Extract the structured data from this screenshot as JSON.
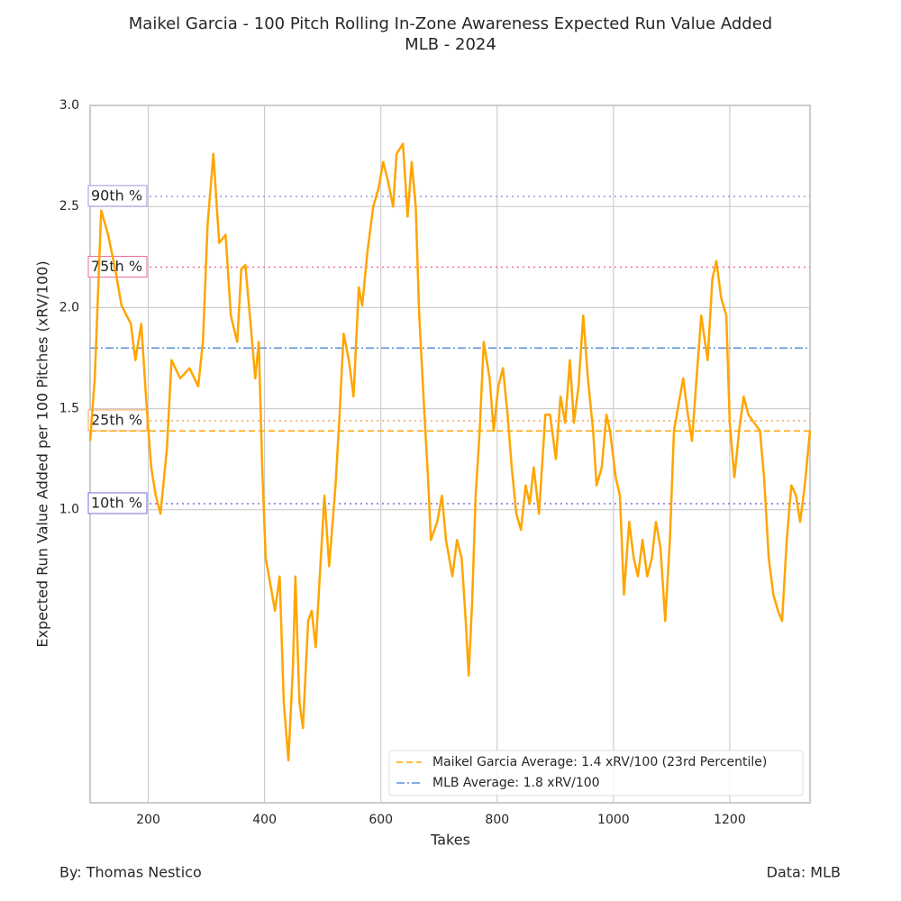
{
  "chart_data": {
    "type": "line",
    "title": "Maikel Garcia - 100 Pitch Rolling In-Zone Awareness Expected Run Value Added",
    "subtitle": "MLB - 2024",
    "xlabel": "Takes",
    "ylabel": "Expected Run Value Added per 100 Pitches (xRV/100)",
    "x": [
      100,
      108,
      119,
      131,
      143,
      154,
      170,
      178,
      188,
      196,
      205,
      213,
      221,
      232,
      240,
      255,
      271,
      286,
      294,
      302,
      312,
      322,
      333,
      342,
      353,
      360,
      367,
      376,
      384,
      390,
      396,
      402,
      410,
      418,
      426,
      433,
      441,
      449,
      453,
      460,
      466,
      475,
      481,
      488,
      495,
      503,
      511,
      522,
      529,
      536,
      545,
      553,
      562,
      568,
      577,
      587,
      596,
      604,
      612,
      621,
      627,
      638,
      646,
      653,
      660,
      666,
      674,
      681,
      686,
      697,
      705,
      712,
      723,
      731,
      739,
      746,
      751,
      757,
      763,
      770,
      777,
      787,
      794,
      802,
      810,
      818,
      825,
      833,
      841,
      849,
      856,
      863,
      872,
      883,
      891,
      901,
      909,
      917,
      925,
      932,
      940,
      948,
      956,
      965,
      971,
      980,
      988,
      994,
      1004,
      1011,
      1018,
      1027,
      1035,
      1042,
      1050,
      1058,
      1066,
      1073,
      1081,
      1089,
      1097,
      1104,
      1112,
      1120,
      1128,
      1135,
      1143,
      1151,
      1162,
      1170,
      1177,
      1185,
      1194,
      1200,
      1208,
      1216,
      1224,
      1232,
      1242,
      1252,
      1259,
      1267,
      1275,
      1283,
      1290,
      1298,
      1306,
      1314,
      1321,
      1329,
      1338
    ],
    "series": [
      {
        "color": "#ffa500",
        "values": [
          1.34,
          1.65,
          2.48,
          2.36,
          2.19,
          2.01,
          1.92,
          1.74,
          1.92,
          1.56,
          1.21,
          1.07,
          0.98,
          1.3,
          1.74,
          1.65,
          1.7,
          1.61,
          1.83,
          2.41,
          2.76,
          2.32,
          2.36,
          1.96,
          1.83,
          2.19,
          2.21,
          1.92,
          1.65,
          1.83,
          1.21,
          0.76,
          0.63,
          0.5,
          0.67,
          0.05,
          -0.24,
          0.23,
          0.67,
          0.05,
          -0.08,
          0.45,
          0.5,
          0.32,
          0.67,
          1.07,
          0.72,
          1.12,
          1.47,
          1.87,
          1.74,
          1.56,
          2.1,
          2.01,
          2.28,
          2.5,
          2.59,
          2.72,
          2.63,
          2.5,
          2.76,
          2.81,
          2.45,
          2.72,
          2.5,
          1.96,
          1.52,
          1.16,
          0.85,
          0.94,
          1.07,
          0.85,
          0.67,
          0.85,
          0.76,
          0.45,
          0.18,
          0.54,
          1.07,
          1.39,
          1.83,
          1.65,
          1.39,
          1.61,
          1.7,
          1.47,
          1.21,
          0.98,
          0.9,
          1.12,
          1.03,
          1.21,
          0.98,
          1.47,
          1.47,
          1.25,
          1.56,
          1.43,
          1.74,
          1.43,
          1.61,
          1.96,
          1.65,
          1.39,
          1.12,
          1.21,
          1.47,
          1.39,
          1.16,
          1.07,
          0.58,
          0.94,
          0.76,
          0.67,
          0.85,
          0.67,
          0.76,
          0.94,
          0.81,
          0.45,
          0.85,
          1.39,
          1.52,
          1.65,
          1.47,
          1.34,
          1.65,
          1.96,
          1.74,
          2.14,
          2.23,
          2.05,
          1.96,
          1.43,
          1.16,
          1.39,
          1.56,
          1.47,
          1.43,
          1.39,
          1.16,
          0.76,
          0.58,
          0.5,
          0.45,
          0.85,
          1.12,
          1.07,
          0.94,
          1.12,
          1.39
        ]
      }
    ],
    "reference_lines": [
      {
        "label": "90th %",
        "value": 2.55,
        "color": "#9f94e8"
      },
      {
        "label": "75th %",
        "value": 2.2,
        "color": "#f06a9a"
      },
      {
        "label": "25th %",
        "value": 1.44,
        "color": "#f5a35c"
      },
      {
        "label": "10th %",
        "value": 1.03,
        "color": "#7b6be0"
      }
    ],
    "average_lines": [
      {
        "name": "Maikel Garcia Average: 1.4 xRV/100 (23rd Percentile)",
        "value": 1.39,
        "color": "#ffa500",
        "style": "dashed"
      },
      {
        "name": "MLB Average: 1.8 xRV/100",
        "value": 1.8,
        "color": "#5b8fd9",
        "style": "dashdot"
      }
    ],
    "xlim": [
      100,
      1338
    ],
    "ylim": [
      -0.45,
      3.0
    ],
    "xticks": [
      200,
      400,
      600,
      800,
      1000,
      1200
    ],
    "yticks": [
      {
        "value": 1.0,
        "label": "1.0"
      },
      1.5,
      {
        "value": 2.0,
        "label": "2.0"
      },
      2.5,
      {
        "value": 3.0,
        "label": "3.0"
      }
    ],
    "grid": true,
    "legend": "lower right"
  },
  "footer": {
    "left": "By: Thomas Nestico",
    "right": "Data: MLB"
  }
}
